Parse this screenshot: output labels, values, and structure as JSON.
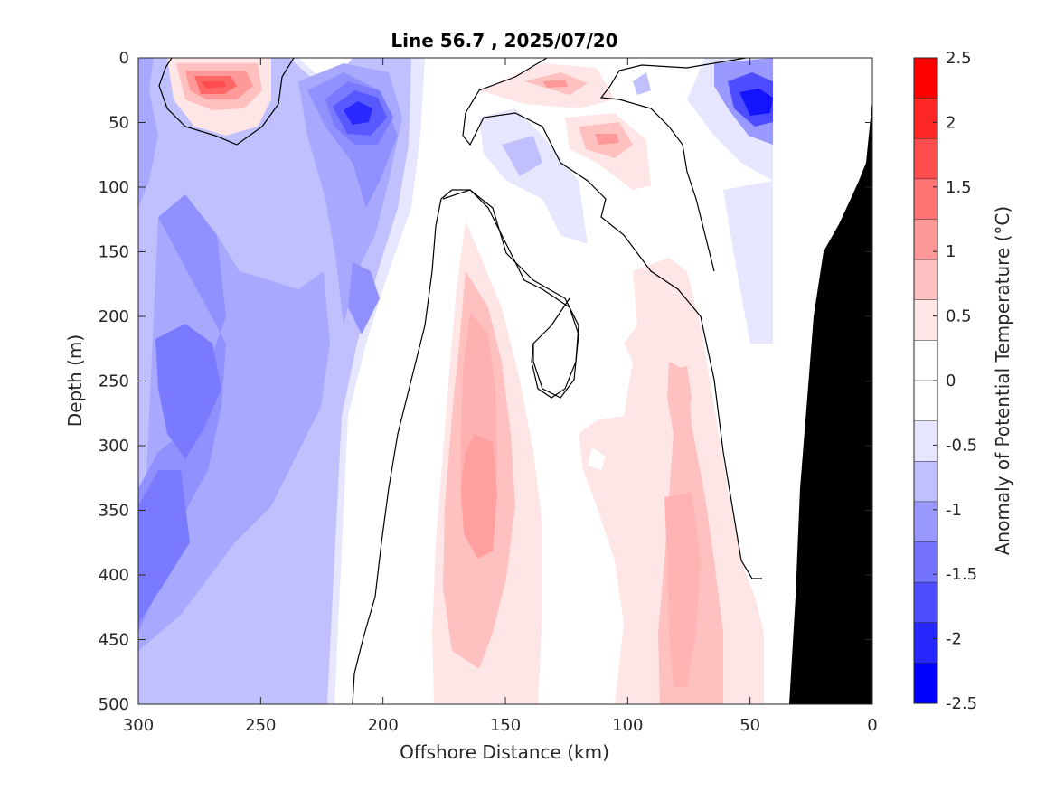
{
  "chart_data": {
    "type": "contourf",
    "title": "Line 56.7 , 2025/07/20",
    "xlabel": "Offshore Distance (km)",
    "ylabel": "Depth (m)",
    "colorbar_label": "Anomaly of Potential Temperature (°C)",
    "xlim": [
      300,
      0
    ],
    "ylim": [
      500,
      0
    ],
    "x_ticks": [
      300,
      250,
      200,
      150,
      100,
      50,
      0
    ],
    "y_ticks": [
      0,
      50,
      100,
      150,
      200,
      250,
      300,
      350,
      400,
      450,
      500
    ],
    "colorbar_range": [
      -2.5,
      2.5
    ],
    "colorbar_ticks": [
      "2.5",
      "2",
      "1.5",
      "1",
      "0.5",
      "0",
      "-0.5",
      "-1",
      "-1.5",
      "-2",
      "-2.5"
    ],
    "colorbar_colors": [
      "#ff0000",
      "#ff2626",
      "#ff4d4d",
      "#ff7373",
      "#ff9999",
      "#ffc0c0",
      "#ffe6e6",
      "#ffffff",
      "#ffffff",
      "#e6e6ff",
      "#c0c0ff",
      "#9999ff",
      "#7373ff",
      "#4d4dff",
      "#2626ff",
      "#0000ff"
    ],
    "bathymetry_color": "#000000",
    "features": [
      {
        "name": "warm core",
        "x": 272,
        "depth": 20,
        "anomaly": 1.5
      },
      {
        "name": "cold core",
        "x": 205,
        "depth": 42,
        "anomaly": -1.8
      },
      {
        "name": "warm core",
        "x": 128,
        "depth": 18,
        "anomaly": 1.0
      },
      {
        "name": "warm core",
        "x": 108,
        "depth": 60,
        "anomaly": 1.0
      },
      {
        "name": "cold core",
        "x": 45,
        "depth": 32,
        "anomaly": -2.0
      },
      {
        "name": "warm tongue",
        "x": 158,
        "depth": 340,
        "anomaly": 0.9
      },
      {
        "name": "warm tongue",
        "x": 80,
        "depth": 400,
        "anomaly": 0.6
      },
      {
        "name": "cold region",
        "x": 285,
        "depth": 300,
        "anomaly": -1.2
      }
    ]
  }
}
